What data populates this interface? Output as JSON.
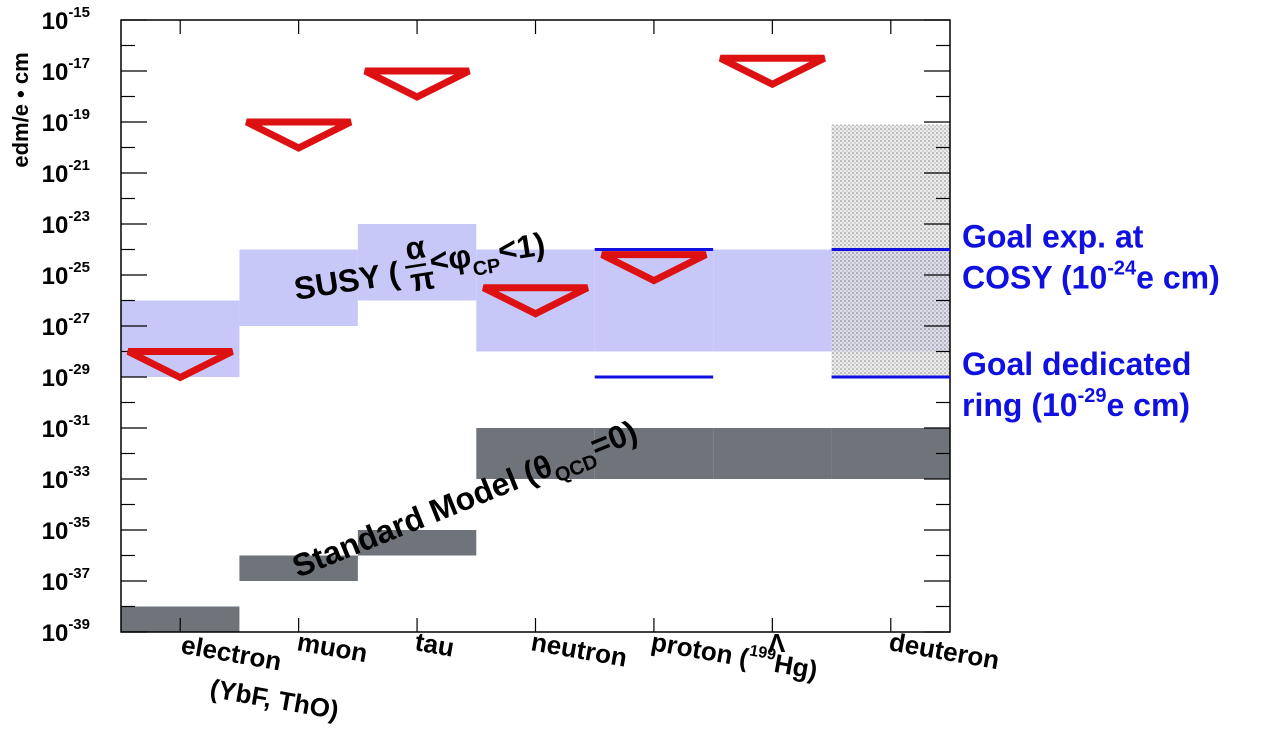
{
  "chart_data": {
    "type": "bar",
    "ylabel": "edm/e • cm",
    "ylog": true,
    "ylim_exponent": [
      -39,
      -15
    ],
    "ytick_base": "10",
    "ytick_exponents": [
      -15,
      -17,
      -19,
      -21,
      -23,
      -25,
      -27,
      -29,
      -31,
      -33,
      -35,
      -37,
      -39
    ],
    "categories": [
      {
        "label": "electron  (YbF, ThO)",
        "rot": 10
      },
      {
        "label": "muon",
        "rot": 10
      },
      {
        "label": "tau",
        "rot": 10
      },
      {
        "label": "neutron",
        "rot": 10
      },
      {
        "label": "proton (",
        "sup": "199",
        "after": "Hg)",
        "rot": 10
      },
      {
        "label": "Λ",
        "rot": 0
      },
      {
        "label": "deuteron",
        "rot": 10
      }
    ],
    "standard_model": {
      "color": "#6e747a",
      "label_pre": "Standard Model (θ",
      "label_sub": "QCD",
      "label_post": "=0)",
      "ranges": [
        [
          -39,
          -38
        ],
        [
          -37,
          -36
        ],
        [
          -36,
          -35
        ],
        [
          -33,
          -31
        ],
        [
          -33,
          -31
        ],
        [
          -33,
          -31
        ],
        [
          -33,
          -31
        ]
      ]
    },
    "susy": {
      "color": "#c8c8f8",
      "label_pre": "SUSY (",
      "frac_num": "α",
      "frac_den": "π",
      "label_mid": "<φ",
      "label_sub": "CP",
      "label_post": "<1)",
      "ranges": [
        [
          -29,
          -26
        ],
        [
          -27,
          -24
        ],
        [
          -26,
          -23
        ],
        [
          -28,
          -24
        ],
        [
          -28,
          -24
        ],
        [
          -28,
          -24
        ],
        [
          -28,
          -24
        ]
      ]
    },
    "upper_limits": {
      "color": "#dd1111",
      "values": [
        {
          "category": 0,
          "exponent": -28
        },
        {
          "category": 1,
          "exponent": -19
        },
        {
          "category": 2,
          "exponent": -17
        },
        {
          "category": 3,
          "exponent": -25.5
        },
        {
          "category": 4,
          "exponent": -24.2
        },
        {
          "category": 5,
          "exponent": -16.5
        }
      ]
    },
    "deuteron_dotted_band": [
      -29,
      -19.1
    ],
    "goals": {
      "color": "#1010e0",
      "lines": [
        {
          "exponent": -24,
          "categories": [
            4,
            6
          ],
          "label1": "Goal exp. at",
          "label2_pre": "COSY (10",
          "label2_sup": "-24",
          "label2_post": "e cm)"
        },
        {
          "exponent": -29,
          "categories": [
            4,
            6
          ],
          "label1": "Goal dedicated",
          "label2_pre": "ring (10",
          "label2_sup": "-29",
          "label2_post": "e cm)"
        }
      ]
    }
  }
}
